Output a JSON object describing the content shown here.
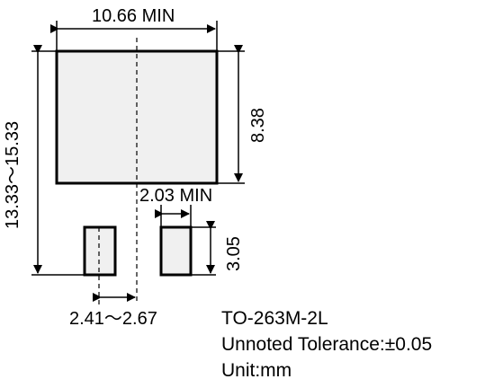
{
  "drawing": {
    "dimensions": {
      "top_width": "10.66 MIN",
      "overall_height": "13.33～15.33",
      "pad_height": "8.38",
      "lead_gap": "2.03 MIN",
      "lead_length": "3.05",
      "lead_pitch": "2.41～2.67"
    },
    "notes": {
      "package": "TO-263M-2L",
      "tolerance": "Unnoted Tolerance:±0.05",
      "unit": "Unit:mm"
    },
    "colors": {
      "line": "#000000",
      "pad_fill": "#f0f0f0",
      "background": "#ffffff"
    }
  }
}
